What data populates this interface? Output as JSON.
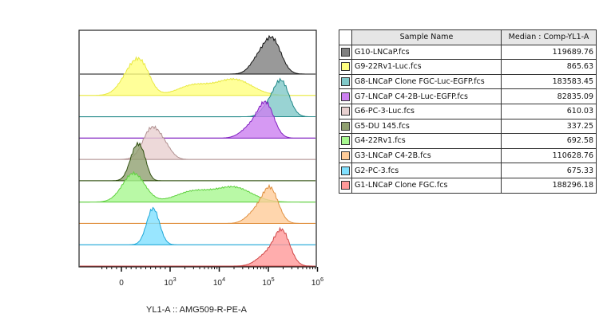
{
  "chart_data": {
    "type": "area",
    "subtype": "offset-histogram-overlay",
    "xlabel": "YL1-A :: AMG509-R-PE-A",
    "x_scale": "logicle",
    "xlim": [
      -500,
      1000000
    ],
    "x_ticks": [
      {
        "value": 0,
        "label": "0",
        "exp": ""
      },
      {
        "value": 1000,
        "label": "10",
        "exp": "3"
      },
      {
        "value": 10000,
        "label": "10",
        "exp": "4"
      },
      {
        "value": 100000,
        "label": "10",
        "exp": "5"
      },
      {
        "value": 1000000,
        "label": "10",
        "exp": "6"
      }
    ],
    "grid": false,
    "legend": "right table",
    "series": [
      {
        "name": "G10-LNCaP.fcs",
        "median": 119689.76,
        "color": "#808080",
        "stroke": "#111111"
      },
      {
        "name": "G9-22Rv1-Luc.fcs",
        "median": 865.63,
        "color": "#ffff80",
        "stroke": "#e8e840"
      },
      {
        "name": "G8-LNCaP Clone FGC-Luc-EGFP.fcs",
        "median": 183583.45,
        "color": "#80c8c8",
        "stroke": "#208888"
      },
      {
        "name": "G7-LNCaP C4-2B-Luc-EGFP.fcs",
        "median": 82835.09,
        "color": "#cc80f0",
        "stroke": "#8020c0"
      },
      {
        "name": "G6-PC-3-Luc.fcs",
        "median": 610.03,
        "color": "#e8d0d0",
        "stroke": "#b09090"
      },
      {
        "name": "G5-DU 145.fcs",
        "median": 337.25,
        "color": "#90a070",
        "stroke": "#305010"
      },
      {
        "name": "G4-22Rv1.fcs",
        "median": 692.58,
        "color": "#a8f890",
        "stroke": "#60d040"
      },
      {
        "name": "G3-LNCaP C4-2B.fcs",
        "median": 110628.76,
        "color": "#ffcc99",
        "stroke": "#e09040"
      },
      {
        "name": "G2-PC-3.fcs",
        "median": 675.33,
        "color": "#80e0ff",
        "stroke": "#20a8d8"
      },
      {
        "name": "G1-LNCaP Clone FGC.fcs",
        "median": 188296.18,
        "color": "#ff9999",
        "stroke": "#d04848"
      }
    ]
  },
  "table": {
    "headers": [
      "",
      "Sample Name",
      "Median : Comp-YL1-A"
    ],
    "rows": [
      {
        "name": "G10-LNCaP.fcs",
        "median": "119689.76",
        "color": "#808080"
      },
      {
        "name": "G9-22Rv1-Luc.fcs",
        "median": "865.63",
        "color": "#ffff80"
      },
      {
        "name": "G8-LNCaP Clone FGC-Luc-EGFP.fcs",
        "median": "183583.45",
        "color": "#80c8c8"
      },
      {
        "name": "G7-LNCaP C4-2B-Luc-EGFP.fcs",
        "median": "82835.09",
        "color": "#cc80f0"
      },
      {
        "name": "G6-PC-3-Luc.fcs",
        "median": "610.03",
        "color": "#e8d0d0"
      },
      {
        "name": "G5-DU 145.fcs",
        "median": "337.25",
        "color": "#90a070"
      },
      {
        "name": "G4-22Rv1.fcs",
        "median": "692.58",
        "color": "#a8f890"
      },
      {
        "name": "G3-LNCaP C4-2B.fcs",
        "median": "110628.76",
        "color": "#ffcc99"
      },
      {
        "name": "G2-PC-3.fcs",
        "median": "675.33",
        "color": "#80e0ff"
      },
      {
        "name": "G1-LNCaP Clone FGC.fcs",
        "median": "188296.18",
        "color": "#ff9999"
      }
    ]
  }
}
